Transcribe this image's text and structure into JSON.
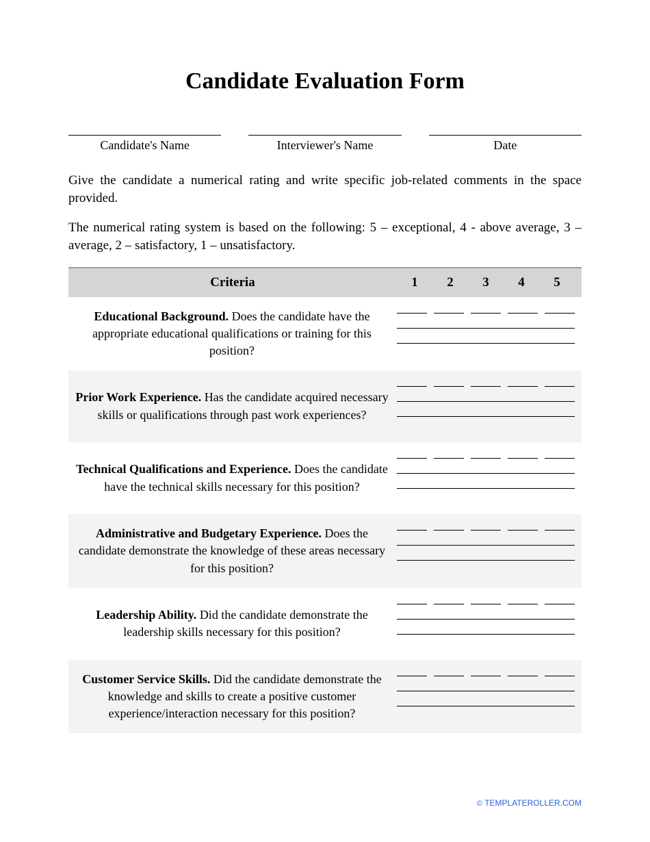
{
  "title": "Candidate Evaluation Form",
  "header_fields": [
    {
      "label": "Candidate's Name"
    },
    {
      "label": "Interviewer's Name"
    },
    {
      "label": "Date"
    }
  ],
  "instructions": [
    "Give the candidate a numerical rating and write specific job-related comments in the space provided.",
    "The numerical rating system is based on the following: 5 – exceptional, 4 - above average, 3 – average, 2 – satisfactory, 1 – unsatisfactory."
  ],
  "table": {
    "header": {
      "criteria": "Criteria",
      "ratings": [
        "1",
        "2",
        "3",
        "4",
        "5"
      ]
    },
    "rows": [
      {
        "title": "Educational Background.",
        "desc": " Does the candidate have the appropriate educational qualifications or training for this position?",
        "alt": false
      },
      {
        "title": "Prior Work Experience.",
        "desc": " Has the candidate acquired necessary skills or qualifications through past work experiences?",
        "alt": true
      },
      {
        "title": "Technical Qualifications and Experience.",
        "desc": " Does the candidate have the technical skills necessary for this position?",
        "alt": false
      },
      {
        "title": "Administrative and Budgetary Experience.",
        "desc": " Does the candidate demonstrate the knowledge of these areas necessary for this position?",
        "alt": true
      },
      {
        "title": "Leadership Ability.",
        "desc": " Did the candidate demonstrate the leadership skills necessary for this position?",
        "alt": false
      },
      {
        "title": "Customer Service Skills.",
        "desc": " Did the candidate demonstrate the knowledge and skills to create a positive customer experience/interaction necessary for this position?",
        "alt": true
      }
    ]
  },
  "footer": {
    "copyright": "©",
    "text": "TEMPLATEROLLER.COM"
  }
}
